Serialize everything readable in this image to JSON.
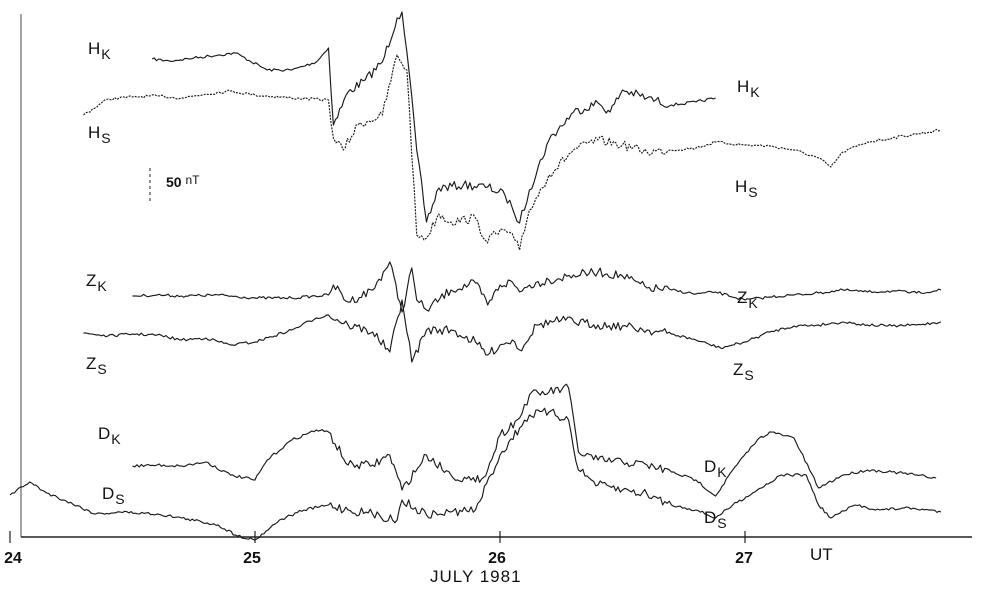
{
  "chart_data": {
    "type": "line",
    "xlabel": "JULY 1981",
    "x_unit": "UT",
    "xlim": [
      24,
      27.85
    ],
    "x_ticks": [
      "24",
      "25",
      "26",
      "27"
    ],
    "scale_bar": {
      "value": "50",
      "unit": "nT"
    },
    "series": [
      {
        "name": "H",
        "station": "K",
        "left_label": true,
        "right_label": true,
        "points": [
          [
            24.58,
            59
          ],
          [
            24.65,
            61
          ],
          [
            24.75,
            58
          ],
          [
            24.85,
            55
          ],
          [
            24.92,
            53
          ],
          [
            25.05,
            70
          ],
          [
            25.15,
            70
          ],
          [
            25.25,
            62
          ],
          [
            25.3,
            48
          ],
          [
            25.32,
            125
          ],
          [
            25.38,
            92
          ],
          [
            25.45,
            80
          ],
          [
            25.52,
            62
          ],
          [
            25.58,
            18
          ],
          [
            25.6,
            12
          ],
          [
            25.62,
            52
          ],
          [
            25.66,
            150
          ],
          [
            25.7,
            222
          ],
          [
            25.75,
            188
          ],
          [
            25.85,
            185
          ],
          [
            25.95,
            187
          ],
          [
            26.02,
            195
          ],
          [
            26.05,
            208
          ],
          [
            26.08,
            223
          ],
          [
            26.12,
            190
          ],
          [
            26.2,
            140
          ],
          [
            26.3,
            112
          ],
          [
            26.4,
            103
          ],
          [
            26.45,
            112
          ],
          [
            26.5,
            90
          ],
          [
            26.6,
            98
          ],
          [
            26.7,
            105
          ],
          [
            26.8,
            102
          ],
          [
            26.88,
            98
          ]
        ]
      },
      {
        "name": "H",
        "station": "S",
        "left_label": true,
        "right_label": true,
        "points": [
          [
            24.3,
            115
          ],
          [
            24.4,
            99
          ],
          [
            24.5,
            97
          ],
          [
            24.6,
            96
          ],
          [
            24.7,
            98
          ],
          [
            24.8,
            94
          ],
          [
            24.9,
            91
          ],
          [
            25.0,
            95
          ],
          [
            25.15,
            98
          ],
          [
            25.3,
            100
          ],
          [
            25.32,
            138
          ],
          [
            25.36,
            150
          ],
          [
            25.42,
            125
          ],
          [
            25.52,
            115
          ],
          [
            25.58,
            55
          ],
          [
            25.62,
            70
          ],
          [
            25.66,
            235
          ],
          [
            25.7,
            238
          ],
          [
            25.75,
            214
          ],
          [
            25.8,
            222
          ],
          [
            25.9,
            218
          ],
          [
            25.94,
            240
          ],
          [
            26.02,
            230
          ],
          [
            26.06,
            240
          ],
          [
            26.08,
            250
          ],
          [
            26.12,
            210
          ],
          [
            26.2,
            175
          ],
          [
            26.3,
            150
          ],
          [
            26.4,
            140
          ],
          [
            26.5,
            145
          ],
          [
            26.6,
            152
          ],
          [
            26.7,
            150
          ],
          [
            26.8,
            148
          ],
          [
            26.88,
            142
          ],
          [
            27.0,
            145
          ],
          [
            27.1,
            146
          ],
          [
            27.2,
            150
          ],
          [
            27.3,
            158
          ],
          [
            27.35,
            167
          ],
          [
            27.4,
            152
          ],
          [
            27.5,
            142
          ],
          [
            27.6,
            138
          ],
          [
            27.7,
            134
          ],
          [
            27.8,
            130
          ]
        ]
      },
      {
        "name": "Z",
        "station": "K",
        "left_label": true,
        "right_label": true,
        "points": [
          [
            24.5,
            296
          ],
          [
            24.6,
            295
          ],
          [
            24.7,
            296
          ],
          [
            24.85,
            295
          ],
          [
            25.0,
            298
          ],
          [
            25.15,
            298
          ],
          [
            25.3,
            295
          ],
          [
            25.32,
            285
          ],
          [
            25.38,
            302
          ],
          [
            25.48,
            290
          ],
          [
            25.55,
            262
          ],
          [
            25.6,
            312
          ],
          [
            25.64,
            268
          ],
          [
            25.66,
            300
          ],
          [
            25.7,
            310
          ],
          [
            25.8,
            290
          ],
          [
            25.9,
            283
          ],
          [
            25.95,
            305
          ],
          [
            26.0,
            285
          ],
          [
            26.05,
            282
          ],
          [
            26.08,
            292
          ],
          [
            26.12,
            285
          ],
          [
            26.2,
            280
          ],
          [
            26.3,
            275
          ],
          [
            26.4,
            272
          ],
          [
            26.5,
            276
          ],
          [
            26.6,
            288
          ],
          [
            26.7,
            290
          ],
          [
            26.8,
            294
          ],
          [
            26.88,
            292
          ],
          [
            27.0,
            300
          ],
          [
            27.1,
            297
          ],
          [
            27.2,
            295
          ],
          [
            27.3,
            293
          ],
          [
            27.4,
            290
          ],
          [
            27.5,
            292
          ],
          [
            27.6,
            291
          ],
          [
            27.7,
            293
          ],
          [
            27.8,
            290
          ]
        ]
      },
      {
        "name": "Z",
        "station": "S",
        "left_label": true,
        "right_label": true,
        "points": [
          [
            24.3,
            333
          ],
          [
            24.4,
            336
          ],
          [
            24.5,
            334
          ],
          [
            24.6,
            335
          ],
          [
            24.7,
            340
          ],
          [
            24.8,
            338
          ],
          [
            24.9,
            345
          ],
          [
            25.0,
            342
          ],
          [
            25.15,
            330
          ],
          [
            25.25,
            318
          ],
          [
            25.3,
            315
          ],
          [
            25.38,
            325
          ],
          [
            25.48,
            332
          ],
          [
            25.55,
            352
          ],
          [
            25.6,
            300
          ],
          [
            25.64,
            362
          ],
          [
            25.7,
            330
          ],
          [
            25.8,
            330
          ],
          [
            25.9,
            342
          ],
          [
            25.95,
            355
          ],
          [
            26.0,
            345
          ],
          [
            26.05,
            340
          ],
          [
            26.08,
            350
          ],
          [
            26.15,
            325
          ],
          [
            26.25,
            320
          ],
          [
            26.4,
            325
          ],
          [
            26.5,
            326
          ],
          [
            26.6,
            330
          ],
          [
            26.7,
            334
          ],
          [
            26.8,
            340
          ],
          [
            26.9,
            348
          ],
          [
            27.0,
            342
          ],
          [
            27.1,
            332
          ],
          [
            27.2,
            326
          ],
          [
            27.3,
            325
          ],
          [
            27.4,
            322
          ],
          [
            27.5,
            325
          ],
          [
            27.6,
            326
          ],
          [
            27.7,
            325
          ],
          [
            27.8,
            322
          ]
        ]
      },
      {
        "name": "D",
        "station": "K",
        "left_label": true,
        "right_label": true,
        "points": [
          [
            24.5,
            466
          ],
          [
            24.6,
            465
          ],
          [
            24.7,
            466
          ],
          [
            24.8,
            462
          ],
          [
            24.9,
            475
          ],
          [
            25.0,
            480
          ],
          [
            25.05,
            460
          ],
          [
            25.15,
            440
          ],
          [
            25.25,
            430
          ],
          [
            25.3,
            432
          ],
          [
            25.38,
            465
          ],
          [
            25.48,
            465
          ],
          [
            25.55,
            455
          ],
          [
            25.6,
            490
          ],
          [
            25.7,
            455
          ],
          [
            25.8,
            475
          ],
          [
            25.9,
            482
          ],
          [
            25.95,
            470
          ],
          [
            26.0,
            435
          ],
          [
            26.08,
            418
          ],
          [
            26.12,
            395
          ],
          [
            26.2,
            392
          ],
          [
            26.28,
            388
          ],
          [
            26.32,
            452
          ],
          [
            26.4,
            460
          ],
          [
            26.5,
            462
          ],
          [
            26.6,
            465
          ],
          [
            26.7,
            472
          ],
          [
            26.8,
            480
          ],
          [
            26.88,
            496
          ],
          [
            26.95,
            470
          ],
          [
            27.05,
            440
          ],
          [
            27.1,
            432
          ],
          [
            27.2,
            438
          ],
          [
            27.3,
            488
          ],
          [
            27.4,
            475
          ],
          [
            27.5,
            470
          ],
          [
            27.6,
            472
          ],
          [
            27.7,
            475
          ],
          [
            27.78,
            478
          ]
        ]
      },
      {
        "name": "D",
        "station": "S",
        "left_label": true,
        "right_label": true,
        "points": [
          [
            24.0,
            495
          ],
          [
            24.08,
            482
          ],
          [
            24.15,
            493
          ],
          [
            24.22,
            500
          ],
          [
            24.35,
            514
          ],
          [
            24.45,
            512
          ],
          [
            24.6,
            514
          ],
          [
            24.7,
            518
          ],
          [
            24.85,
            525
          ],
          [
            24.92,
            535
          ],
          [
            25.0,
            540
          ],
          [
            25.1,
            520
          ],
          [
            25.2,
            510
          ],
          [
            25.3,
            505
          ],
          [
            25.38,
            510
          ],
          [
            25.48,
            514
          ],
          [
            25.58,
            520
          ],
          [
            25.6,
            500
          ],
          [
            25.7,
            515
          ],
          [
            25.8,
            512
          ],
          [
            25.9,
            510
          ],
          [
            26.0,
            455
          ],
          [
            26.08,
            428
          ],
          [
            26.12,
            415
          ],
          [
            26.2,
            412
          ],
          [
            26.28,
            420
          ],
          [
            26.32,
            470
          ],
          [
            26.4,
            485
          ],
          [
            26.5,
            490
          ],
          [
            26.6,
            494
          ],
          [
            26.7,
            505
          ],
          [
            26.8,
            510
          ],
          [
            26.88,
            518
          ],
          [
            26.95,
            505
          ],
          [
            27.05,
            490
          ],
          [
            27.15,
            475
          ],
          [
            27.25,
            475
          ],
          [
            27.3,
            505
          ],
          [
            27.35,
            518
          ],
          [
            27.45,
            505
          ],
          [
            27.55,
            510
          ],
          [
            27.65,
            508
          ],
          [
            27.75,
            510
          ],
          [
            27.8,
            512
          ]
        ]
      }
    ]
  }
}
